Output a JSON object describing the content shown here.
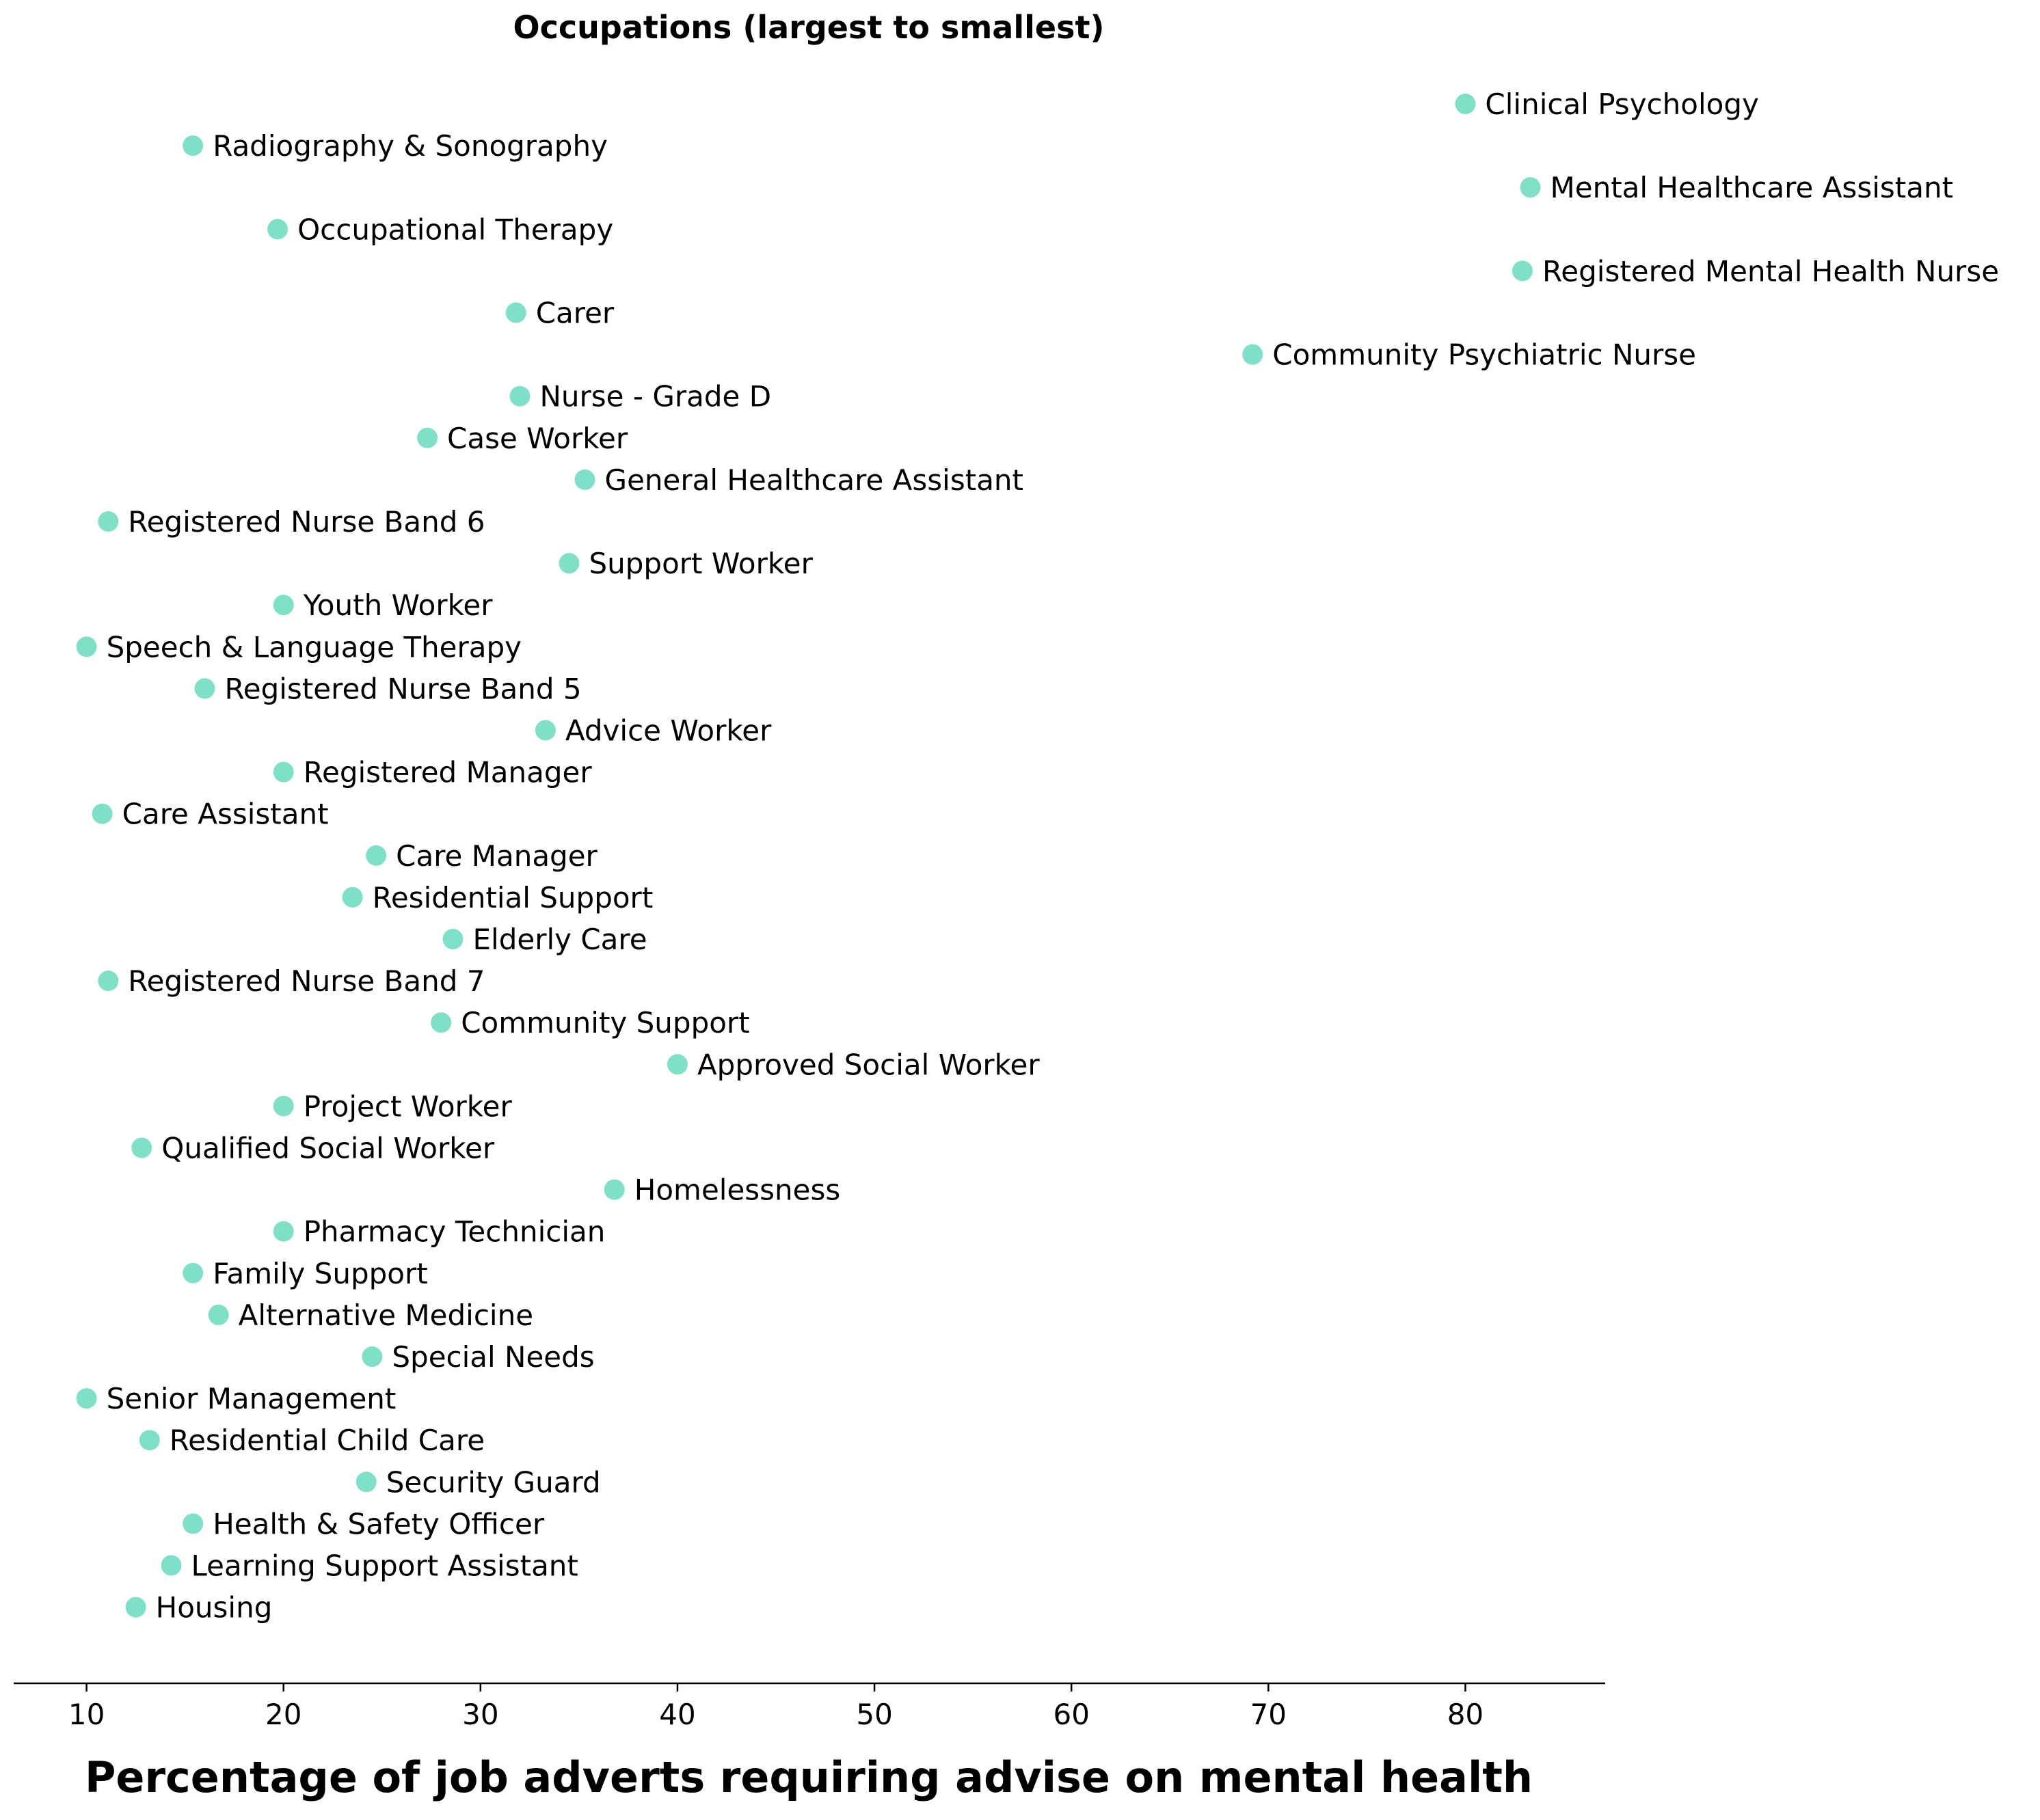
{
  "chart_data": {
    "type": "scatter",
    "title": "Occupations (largest to smallest)",
    "xlabel": "Percentage of job adverts requiring advise on mental health",
    "ylabel": "",
    "xlim": [
      6.3,
      87.1
    ],
    "x_ticks": [
      10,
      20,
      30,
      40,
      50,
      60,
      70,
      80
    ],
    "grid": false,
    "y_axis_visible": false,
    "marker_color": "#7fe0c8",
    "points": [
      {
        "label": "Clinical Psychology",
        "x": 80.0
      },
      {
        "label": "Radiography & Sonography",
        "x": 15.4
      },
      {
        "label": "Mental Healthcare Assistant",
        "x": 83.3
      },
      {
        "label": "Occupational Therapy",
        "x": 19.7
      },
      {
        "label": "Registered Mental Health Nurse",
        "x": 82.9
      },
      {
        "label": "Carer",
        "x": 31.8
      },
      {
        "label": "Community Psychiatric Nurse",
        "x": 69.2
      },
      {
        "label": "Nurse - Grade D",
        "x": 32.0
      },
      {
        "label": "Case Worker",
        "x": 27.3
      },
      {
        "label": "General Healthcare Assistant",
        "x": 35.3
      },
      {
        "label": "Registered Nurse Band 6",
        "x": 11.1
      },
      {
        "label": "Support Worker",
        "x": 34.5
      },
      {
        "label": "Youth Worker",
        "x": 20.0
      },
      {
        "label": "Speech & Language Therapy",
        "x": 10.0
      },
      {
        "label": "Registered Nurse Band 5",
        "x": 16.0
      },
      {
        "label": "Advice Worker",
        "x": 33.3
      },
      {
        "label": "Registered Manager",
        "x": 20.0
      },
      {
        "label": "Care Assistant",
        "x": 10.8
      },
      {
        "label": "Care Manager",
        "x": 24.7
      },
      {
        "label": "Residential Support",
        "x": 23.5
      },
      {
        "label": "Elderly Care",
        "x": 28.6
      },
      {
        "label": "Registered Nurse Band 7",
        "x": 11.1
      },
      {
        "label": "Community Support",
        "x": 28.0
      },
      {
        "label": "Approved Social Worker",
        "x": 40.0
      },
      {
        "label": "Project Worker",
        "x": 20.0
      },
      {
        "label": "Qualified Social Worker",
        "x": 12.8
      },
      {
        "label": "Homelessness",
        "x": 36.8
      },
      {
        "label": "Pharmacy Technician",
        "x": 20.0
      },
      {
        "label": "Family Support",
        "x": 15.4
      },
      {
        "label": "Alternative Medicine",
        "x": 16.7
      },
      {
        "label": "Special Needs",
        "x": 24.5
      },
      {
        "label": "Senior Management",
        "x": 10.0
      },
      {
        "label": "Residential Child Care",
        "x": 13.2
      },
      {
        "label": "Security Guard",
        "x": 24.2
      },
      {
        "label": "Health & Safety Officer",
        "x": 15.4
      },
      {
        "label": "Learning Support Assistant",
        "x": 14.3
      },
      {
        "label": "Housing",
        "x": 12.5
      }
    ]
  }
}
